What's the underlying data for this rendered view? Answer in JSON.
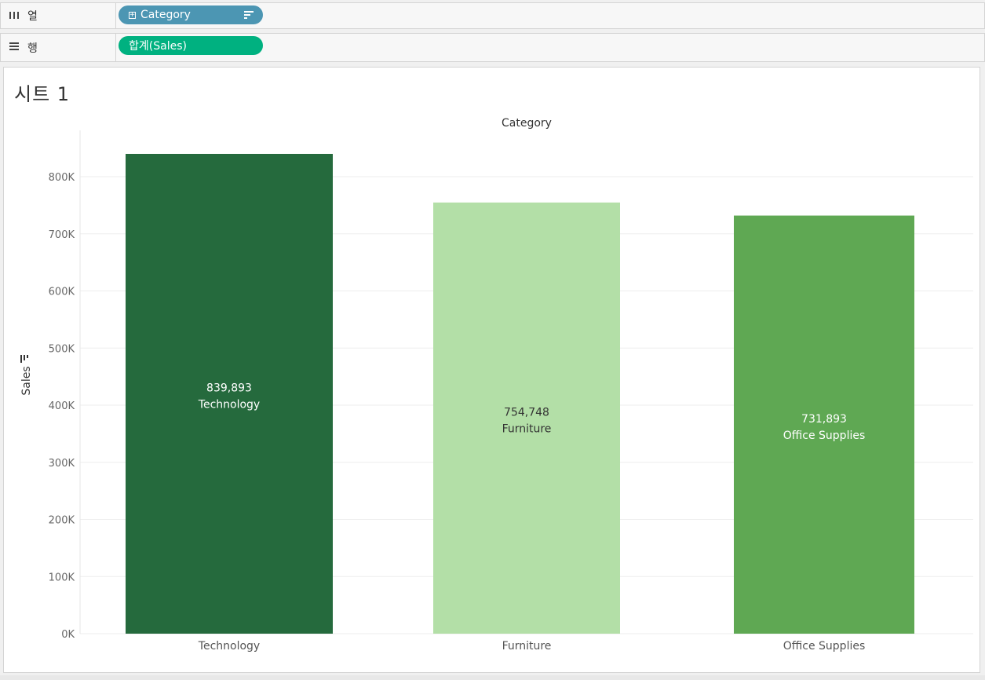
{
  "shelves": {
    "columns": {
      "label": "열",
      "icon": "columns-icon",
      "pill": "Category"
    },
    "rows": {
      "label": "행",
      "icon": "rows-icon",
      "pill": "합계(Sales)"
    }
  },
  "sheet": {
    "title": "시트 1"
  },
  "colors": {
    "columns_pill": "#4c96b3",
    "rows_pill": "#00b180"
  },
  "chart_data": {
    "type": "bar",
    "title": "Category",
    "xlabel": "",
    "ylabel": "Sales",
    "ylim": [
      0,
      880000
    ],
    "yticks": [
      0,
      100000,
      200000,
      300000,
      400000,
      500000,
      600000,
      700000,
      800000
    ],
    "ytick_labels": [
      "0K",
      "100K",
      "200K",
      "300K",
      "400K",
      "500K",
      "600K",
      "700K",
      "800K"
    ],
    "categories": [
      "Technology",
      "Furniture",
      "Office Supplies"
    ],
    "values": [
      839893,
      754748,
      731893
    ],
    "value_labels": [
      "839,893",
      "754,748",
      "731,893"
    ],
    "bar_colors": [
      "#256a3d",
      "#b3dfa7",
      "#5fa853"
    ],
    "label_colors": [
      "#ffffff",
      "#333333",
      "#ffffff"
    ],
    "grid": true
  }
}
